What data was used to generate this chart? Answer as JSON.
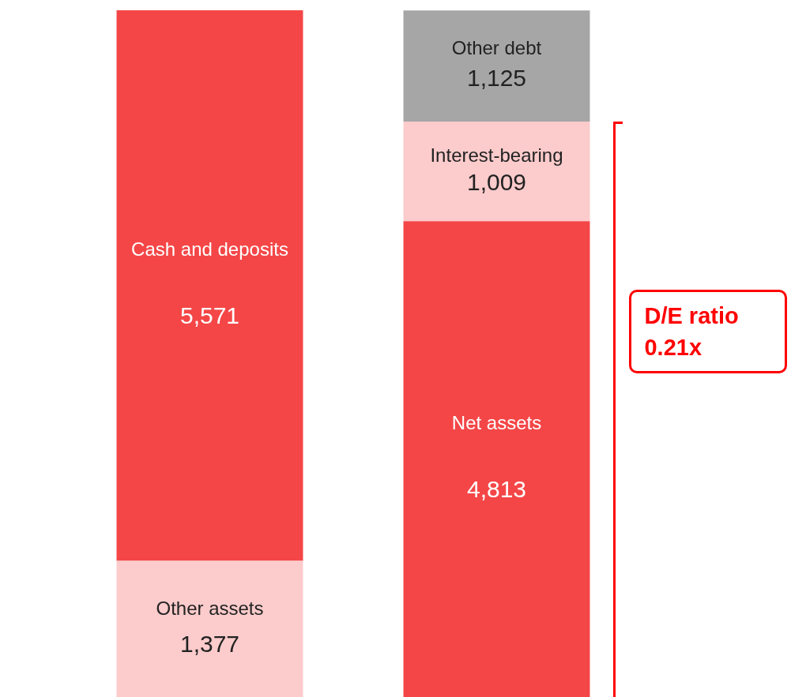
{
  "chart_data": {
    "type": "bar",
    "stacked": true,
    "categories": [
      null,
      null
    ],
    "series": [
      {
        "name": "Other assets",
        "color": "#fccbcb",
        "values": [
          1377,
          null
        ],
        "value_labels": [
          "1,377",
          null
        ]
      },
      {
        "name": "Cash and deposits",
        "color": "#f44647",
        "values": [
          5571,
          null
        ],
        "value_labels": [
          "5,571",
          null
        ]
      },
      {
        "name": "Net assets",
        "color": "#f44647",
        "values": [
          null,
          4813
        ],
        "value_labels": [
          null,
          "4,813"
        ]
      },
      {
        "name": "Interest-bearing",
        "color": "#fccbcb",
        "values": [
          null,
          1009
        ],
        "value_labels": [
          null,
          "1,009"
        ]
      },
      {
        "name": "Other debt",
        "color": "#a6a6a6",
        "values": [
          null,
          1125
        ],
        "value_labels": [
          null,
          "1,125"
        ]
      }
    ],
    "annotations": [
      "D/E ratio 0.21x"
    ]
  }
}
